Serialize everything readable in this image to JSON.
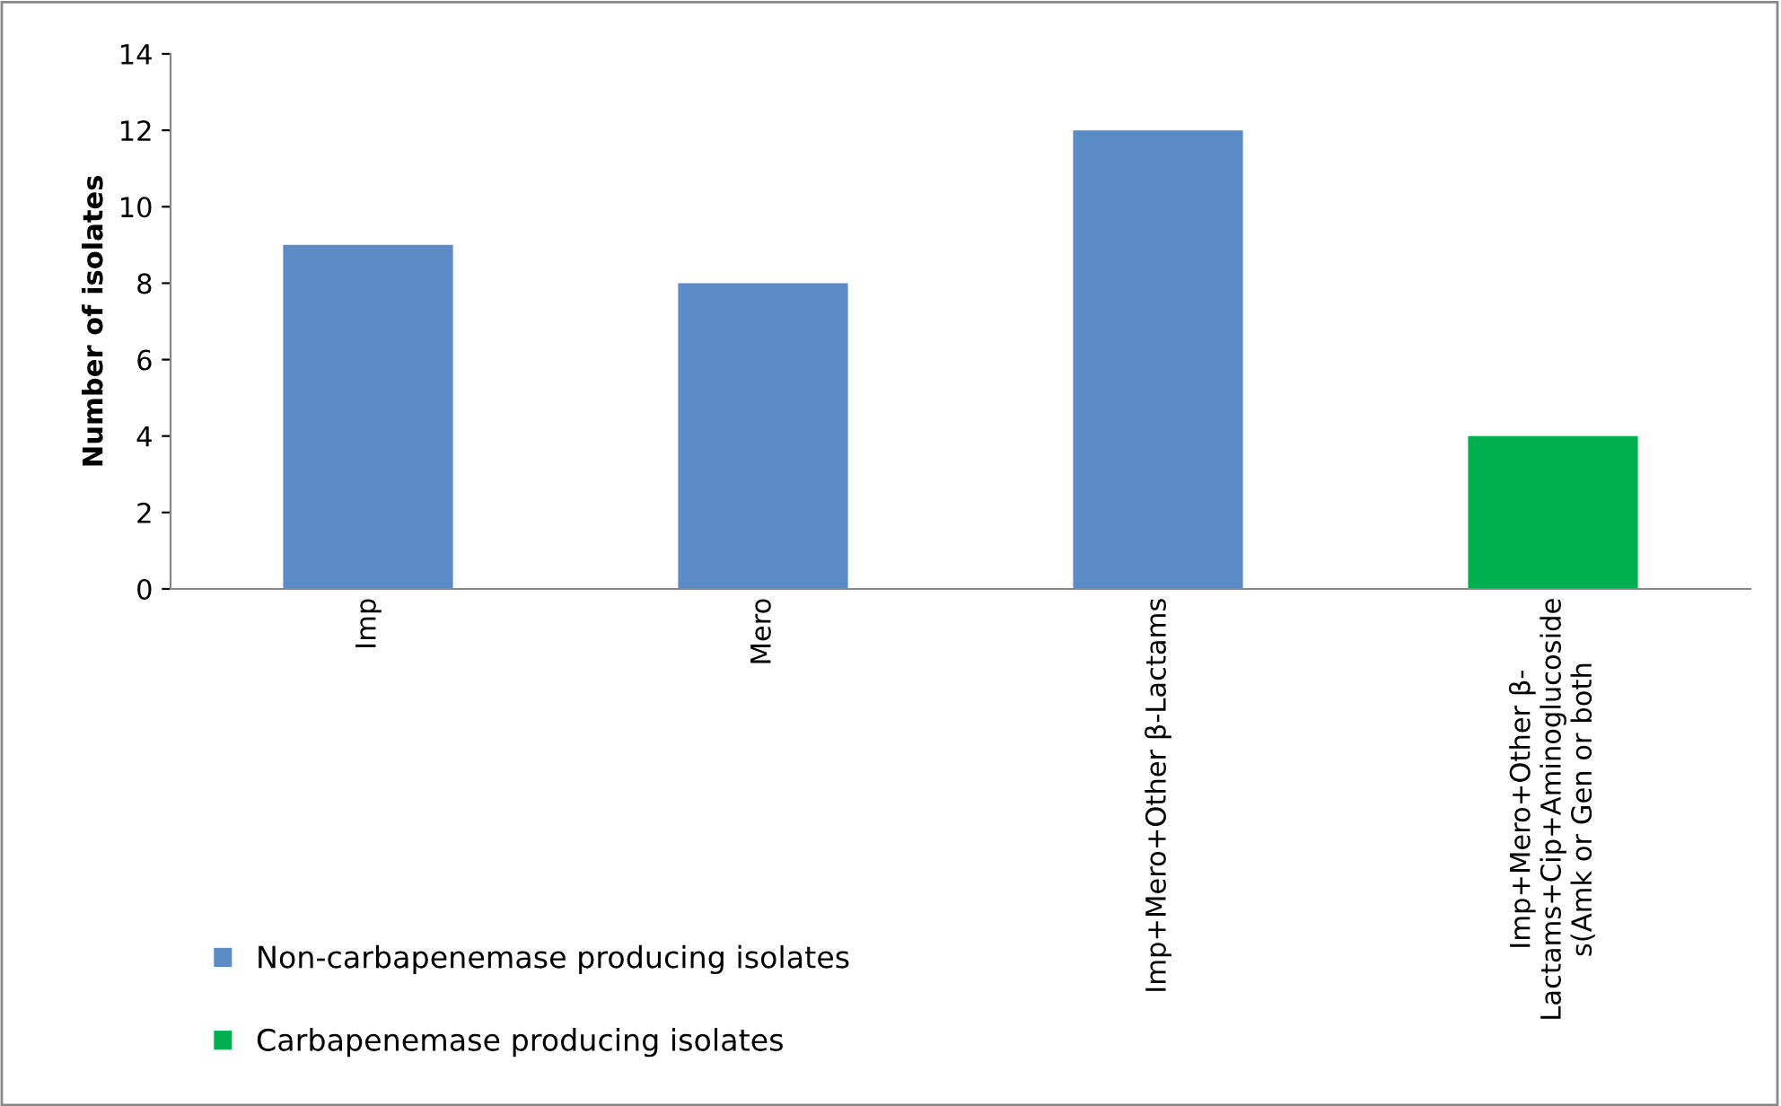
{
  "chart_data": {
    "type": "bar",
    "ylabel": "Number of isolates",
    "categories": [
      "Imp",
      "Mero",
      "Imp+Mero+Other β-Lactams",
      "Imp+Mero+Other β-\nLactams+Cip+Aminoglucoside\ns(Amk or Gen or both"
    ],
    "series": [
      {
        "name": "Non-carbapenemase producing isolates",
        "color": "#5b8bc5",
        "values": [
          9,
          8,
          12,
          null
        ]
      },
      {
        "name": "Carbapenemase producing isolates",
        "color": "#00b050",
        "values": [
          null,
          null,
          null,
          4
        ]
      }
    ],
    "ylim": [
      0,
      14
    ],
    "yticks": [
      0,
      2,
      4,
      6,
      8,
      10,
      12,
      14
    ],
    "grid": false,
    "legend": "bottom left"
  }
}
